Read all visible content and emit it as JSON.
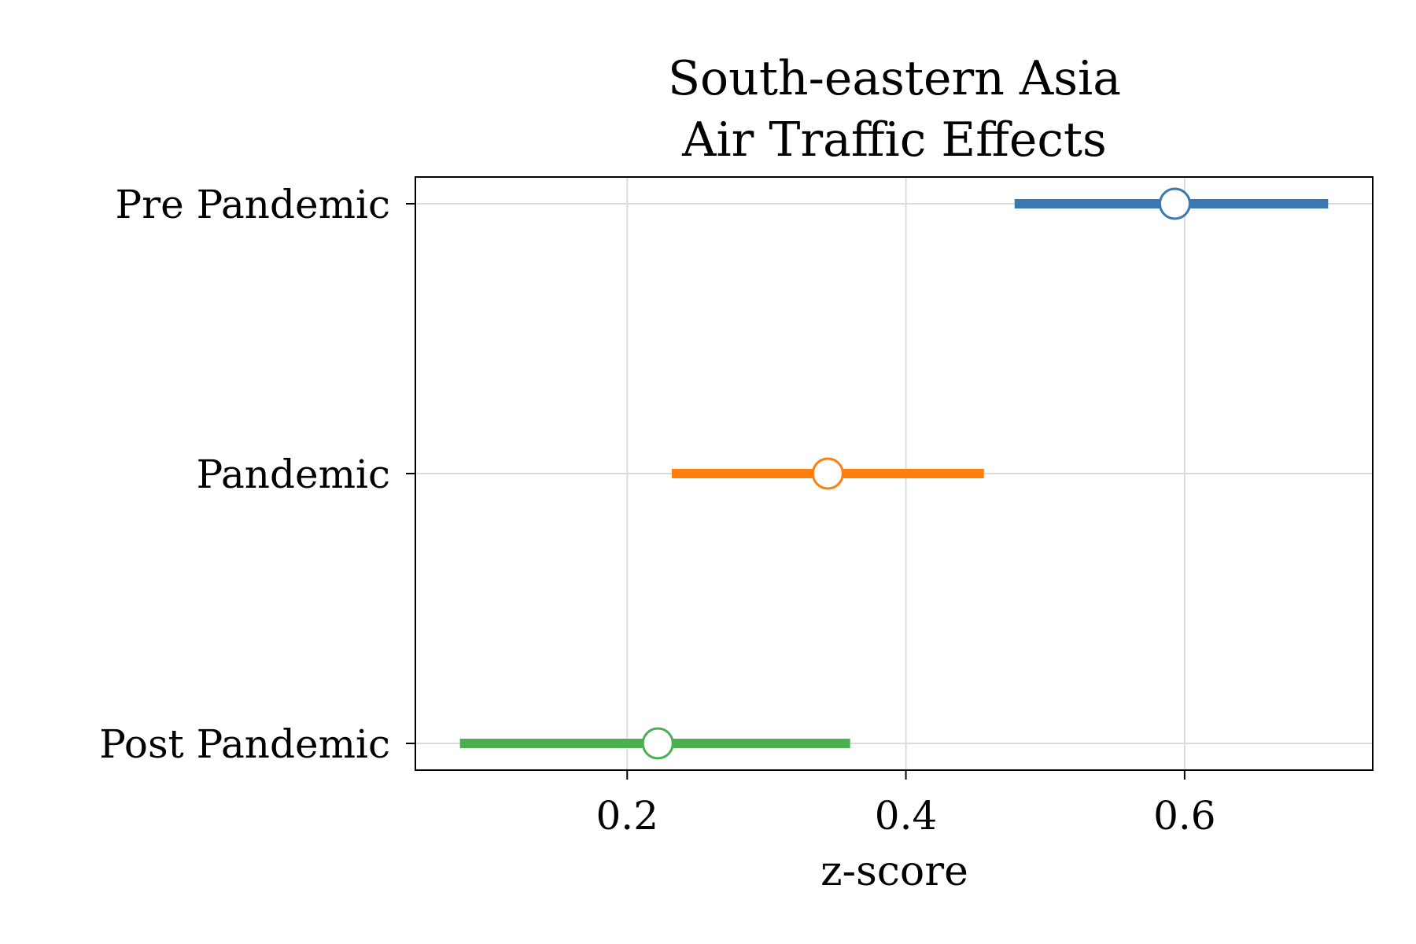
{
  "chart_data": {
    "type": "forest",
    "title": [
      "South-eastern Asia",
      "Air Traffic Effects"
    ],
    "xlabel": "z-score",
    "ylabel": "",
    "xlim": [
      0.048,
      0.735
    ],
    "xticks": [
      0.2,
      0.4,
      0.6
    ],
    "xtick_labels": [
      "0.2",
      "0.4",
      "0.6"
    ],
    "grid": true,
    "categories": [
      "Pre Pandemic",
      "Pandemic",
      "Post Pandemic"
    ],
    "series": [
      {
        "category": "Pre Pandemic",
        "estimate": 0.593,
        "lower": 0.478,
        "upper": 0.703,
        "color": "#3a78b2"
      },
      {
        "category": "Pandemic",
        "estimate": 0.344,
        "lower": 0.232,
        "upper": 0.456,
        "color": "#ff7f0e"
      },
      {
        "category": "Post Pandemic",
        "estimate": 0.222,
        "lower": 0.08,
        "upper": 0.36,
        "color": "#4caf50"
      }
    ]
  }
}
